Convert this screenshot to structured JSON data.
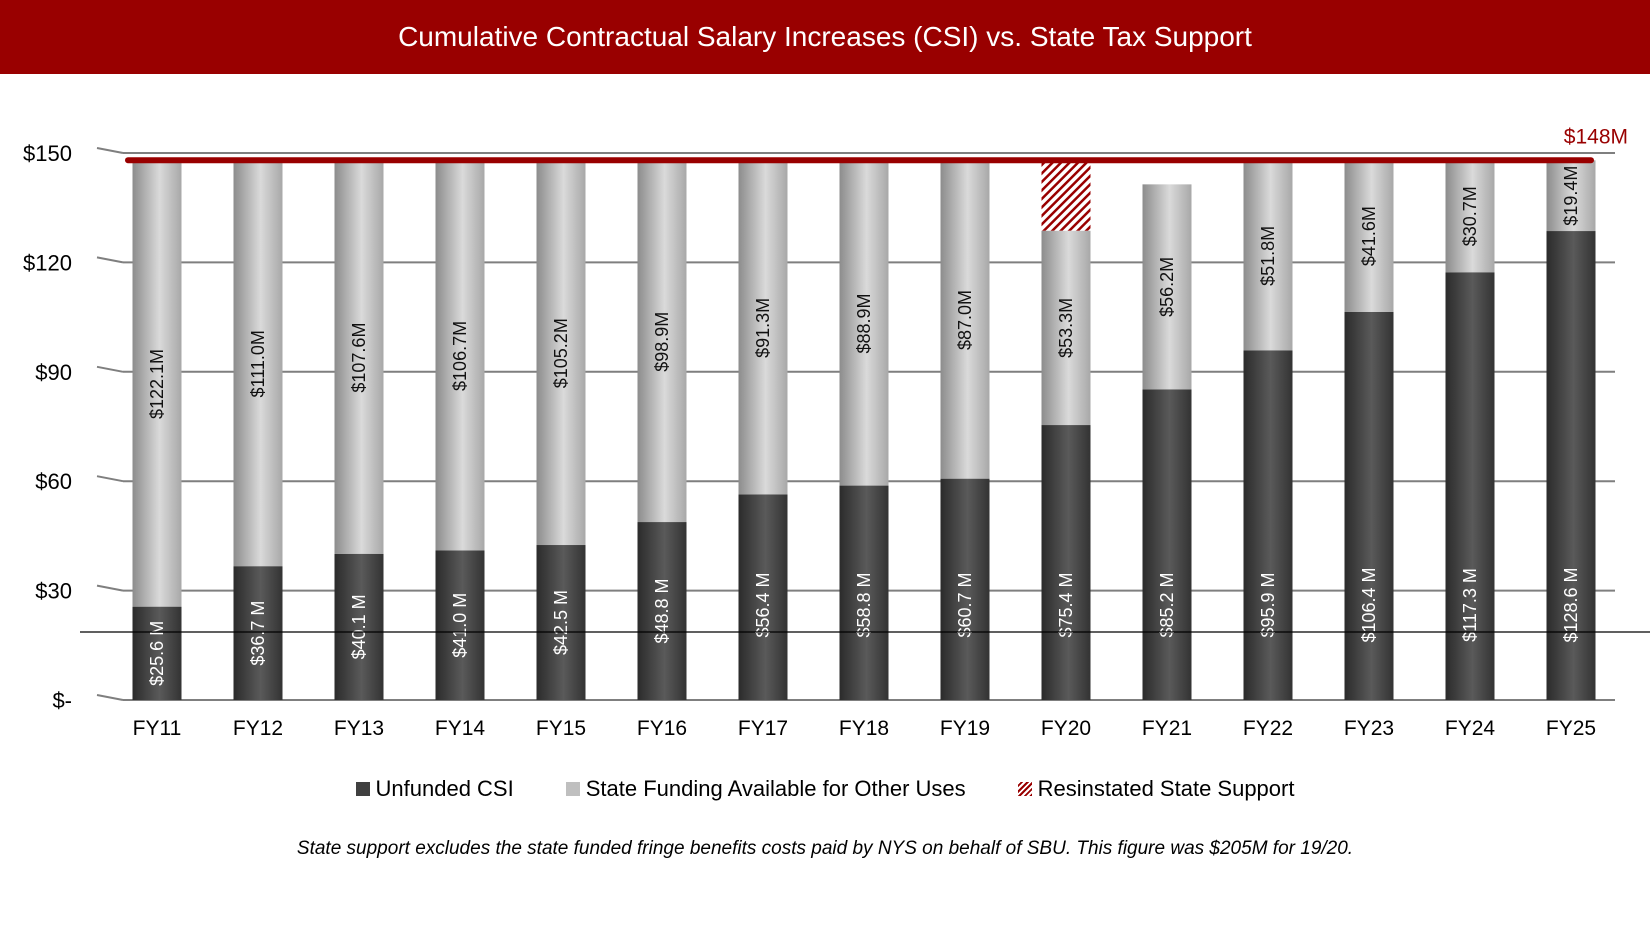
{
  "chart_data": {
    "type": "bar",
    "stacked": true,
    "title": "Cumulative Contractual Salary Increases (CSI) vs. State Tax Support",
    "categories": [
      "FY11",
      "FY12",
      "FY13",
      "FY14",
      "FY15",
      "FY16",
      "FY17",
      "FY18",
      "FY19",
      "FY20",
      "FY21",
      "FY22",
      "FY23",
      "FY24",
      "FY25"
    ],
    "series": [
      {
        "name": "Unfunded CSI",
        "color": "#404040",
        "values": [
          25.6,
          36.7,
          40.1,
          41.0,
          42.5,
          48.8,
          56.4,
          58.8,
          60.7,
          75.4,
          85.2,
          95.9,
          106.4,
          117.3,
          128.6
        ],
        "labels": [
          "$25.6 M",
          "$36.7 M",
          "$40.1 M",
          "$41.0 M",
          "$42.5 M",
          "$48.8 M",
          "$56.4 M",
          "$58.8 M",
          "$60.7 M",
          "$75.4 M",
          "$85.2 M",
          "$95.9 M",
          "$106.4 M",
          "$117.3 M",
          "$128.6 M"
        ]
      },
      {
        "name": "State Funding Available for Other Uses",
        "color": "#bfbfbf",
        "values": [
          122.1,
          111.0,
          107.6,
          106.7,
          105.2,
          98.9,
          91.3,
          88.9,
          87.0,
          53.3,
          56.2,
          51.8,
          41.6,
          30.7,
          19.4
        ],
        "labels": [
          "$122.1M",
          "$111.0M",
          "$107.6M",
          "$106.7M",
          "$105.2M",
          "$98.9M",
          "$91.3M",
          "$88.9M",
          "$87.0M",
          "$53.3M",
          "$56.2M",
          "$51.8M",
          "$41.6M",
          "$30.7M",
          "$19.4M"
        ]
      },
      {
        "name": "Resinstated State Support",
        "color": "#990000",
        "pattern": "diagonal-hatch",
        "values": [
          0,
          0,
          0,
          0,
          0,
          0,
          0,
          0,
          0,
          19.3,
          0,
          0,
          0,
          0,
          0
        ]
      }
    ],
    "reference_line": {
      "value": 148,
      "label": "$148M",
      "color": "#990000"
    },
    "ylim": [
      0,
      150
    ],
    "yticks": [
      0,
      30,
      60,
      90,
      120,
      150
    ],
    "ytick_labels": [
      "$-",
      "$30",
      "$60",
      "$90",
      "$120",
      "$150"
    ],
    "grid": true,
    "legend_position": "bottom"
  },
  "footnote": "State support excludes the state funded fringe benefits costs paid by NYS on behalf of SBU. This figure was $205M for 19/20."
}
